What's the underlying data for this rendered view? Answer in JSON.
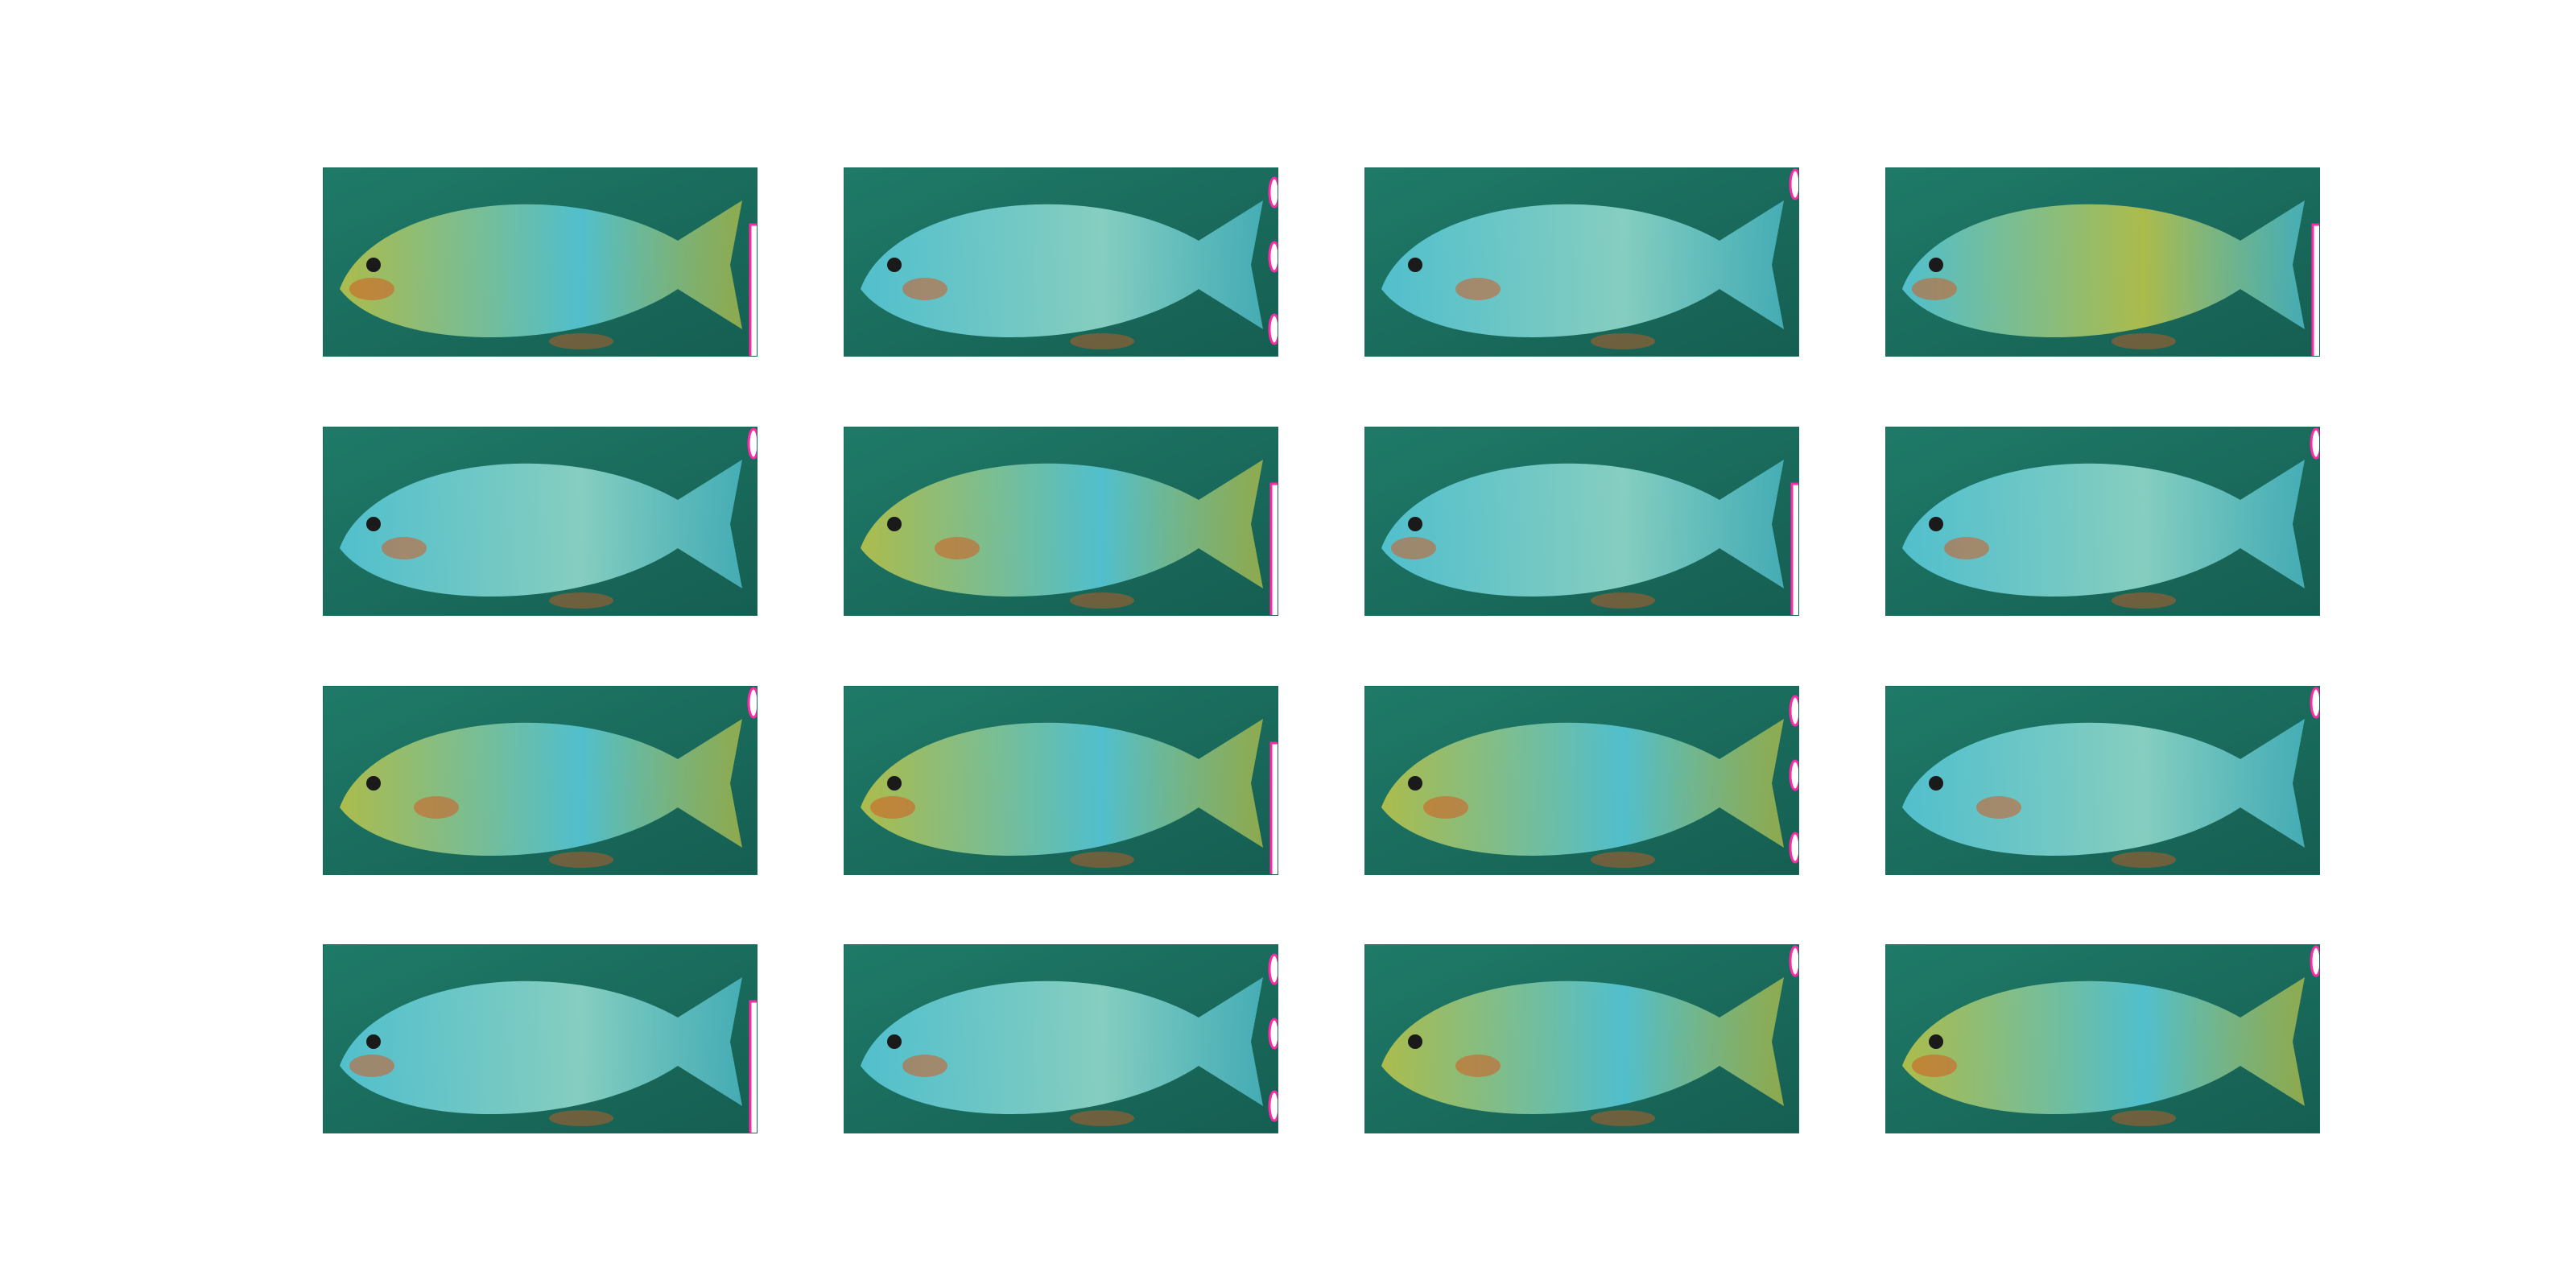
{
  "figure": {
    "description_hidden": "",
    "grid": {
      "rows": 4,
      "cols": 4
    },
    "palette": {
      "water": "#1f7a68",
      "water_dark": "#155e52",
      "fish_cyan": "#56c6d6",
      "fish_yellow": "#b8c24a",
      "accent_orange": "#d65a20",
      "marker_magenta": "#ff2aa8"
    },
    "tiles": [
      {
        "id": "r1c1",
        "tone": "yellow",
        "marker": "bar"
      },
      {
        "id": "r1c2",
        "tone": "cyan",
        "marker": "dots"
      },
      {
        "id": "r1c3",
        "tone": "cyan",
        "marker": "small"
      },
      {
        "id": "r1c4",
        "tone": "mixed",
        "marker": "bar"
      },
      {
        "id": "r2c1",
        "tone": "cyan",
        "marker": "small"
      },
      {
        "id": "r2c2",
        "tone": "yellow",
        "marker": "bar"
      },
      {
        "id": "r2c3",
        "tone": "cyan",
        "marker": "bar"
      },
      {
        "id": "r2c4",
        "tone": "cyan",
        "marker": "small"
      },
      {
        "id": "r3c1",
        "tone": "yellow",
        "marker": "small"
      },
      {
        "id": "r3c2",
        "tone": "yellow",
        "marker": "bar"
      },
      {
        "id": "r3c3",
        "tone": "yellow",
        "marker": "dots"
      },
      {
        "id": "r3c4",
        "tone": "cyan",
        "marker": "small"
      },
      {
        "id": "r4c1",
        "tone": "cyan",
        "marker": "bar"
      },
      {
        "id": "r4c2",
        "tone": "cyan",
        "marker": "dots"
      },
      {
        "id": "r4c3",
        "tone": "yellow",
        "marker": "small"
      },
      {
        "id": "r4c4",
        "tone": "yellow",
        "marker": "small"
      }
    ]
  }
}
